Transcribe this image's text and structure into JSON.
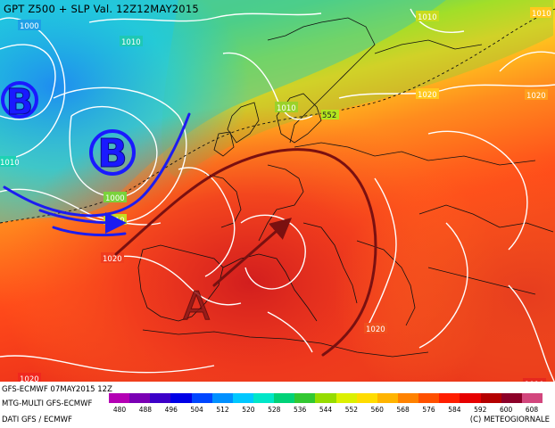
{
  "header": {
    "title": "GPT Z500 + SLP Val. 12Z12MAY2015"
  },
  "footer": {
    "left_line1": "GFS-ECMWF 07MAY2015 12Z",
    "left_line2": "MTG-MULTI GFS-ECMWF",
    "left_line3": "DATI GFS / ECMWF",
    "right": "(C) METEOGIORNALE"
  },
  "legend": {
    "ticks": [
      "480",
      "488",
      "496",
      "504",
      "512",
      "520",
      "528",
      "536",
      "544",
      "552",
      "560",
      "568",
      "576",
      "584",
      "592",
      "600",
      "608"
    ],
    "colors": [
      "#b400b4",
      "#7a00b4",
      "#3c00c8",
      "#0000e6",
      "#0046ff",
      "#0090ff",
      "#00c8ff",
      "#00e6c8",
      "#00d278",
      "#32c832",
      "#96dc00",
      "#dcf000",
      "#ffdc00",
      "#ffb400",
      "#ff8200",
      "#ff5000",
      "#ff1e00",
      "#e60000",
      "#b40000",
      "#8c0028",
      "#d2467d"
    ]
  },
  "map": {
    "pressure_labels": [
      "1000",
      "1010",
      "1010",
      "1020",
      "1020",
      "1010",
      "1000",
      "1010",
      "1020",
      "1020",
      "1010",
      "1020",
      "1010",
      "1010"
    ],
    "geopot_label": "552",
    "symbols": {
      "low_left": "B",
      "low_center": "B",
      "high": "A"
    },
    "colors": {
      "low": "#1a1aff",
      "high": "#8a1a1a",
      "arrow_blue": "#1c1cf0",
      "arrow_red": "#7a1010"
    }
  }
}
